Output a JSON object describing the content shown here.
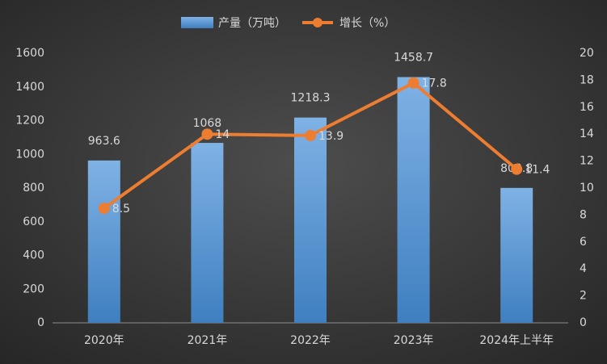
{
  "chart_data": {
    "type": "bar",
    "categories": [
      "2020年",
      "2021年",
      "2022年",
      "2023年",
      "2024年上半年"
    ],
    "series": [
      {
        "name": "产量（万吨）",
        "color": "#5b9bd5",
        "values": [
          963.6,
          1068,
          1218.3,
          1458.7,
          800.8
        ]
      },
      {
        "name": "增长（%）",
        "color": "#ed7d31",
        "type": "line",
        "axis": "y2",
        "values": [
          8.5,
          14,
          13.9,
          17.8,
          11.4
        ]
      }
    ],
    "ylim": [
      0,
      1600
    ],
    "yticks": [
      0,
      200,
      400,
      600,
      800,
      1000,
      1200,
      1400,
      1600
    ],
    "y2lim": [
      0,
      20
    ],
    "y2ticks": [
      0,
      2,
      4,
      6,
      8,
      10,
      12,
      14,
      16,
      18,
      20
    ],
    "legend": "top",
    "grid": false
  }
}
